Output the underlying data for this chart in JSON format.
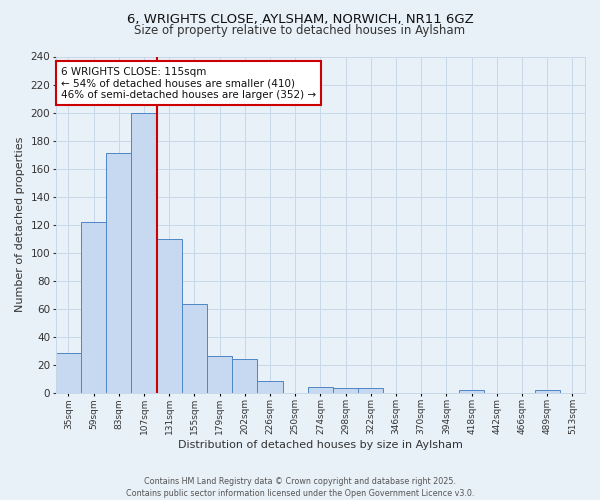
{
  "title_line1": "6, WRIGHTS CLOSE, AYLSHAM, NORWICH, NR11 6GZ",
  "title_line2": "Size of property relative to detached houses in Aylsham",
  "bar_labels": [
    "35sqm",
    "59sqm",
    "83sqm",
    "107sqm",
    "131sqm",
    "155sqm",
    "179sqm",
    "202sqm",
    "226sqm",
    "250sqm",
    "274sqm",
    "298sqm",
    "322sqm",
    "346sqm",
    "370sqm",
    "394sqm",
    "418sqm",
    "442sqm",
    "466sqm",
    "489sqm",
    "513sqm"
  ],
  "bar_heights": [
    28,
    122,
    171,
    200,
    110,
    63,
    26,
    24,
    8,
    0,
    4,
    3,
    3,
    0,
    0,
    0,
    2,
    0,
    0,
    2,
    0
  ],
  "bar_color": "#c6d9f1",
  "bar_edge_color": "#4f86c6",
  "xlabel": "Distribution of detached houses by size in Aylsham",
  "ylabel": "Number of detached properties",
  "ylim": [
    0,
    240
  ],
  "yticks": [
    0,
    20,
    40,
    60,
    80,
    100,
    120,
    140,
    160,
    180,
    200,
    220,
    240
  ],
  "vline_color": "#cc0000",
  "annotation_title": "6 WRIGHTS CLOSE: 115sqm",
  "annotation_line2": "← 54% of detached houses are smaller (410)",
  "annotation_line3": "46% of semi-detached houses are larger (352) →",
  "annotation_box_color": "#ffffff",
  "annotation_box_edge": "#cc0000",
  "grid_color": "#c8d8e8",
  "background_color": "#e8f0f8",
  "footer_line1": "Contains HM Land Registry data © Crown copyright and database right 2025.",
  "footer_line2": "Contains public sector information licensed under the Open Government Licence v3.0."
}
